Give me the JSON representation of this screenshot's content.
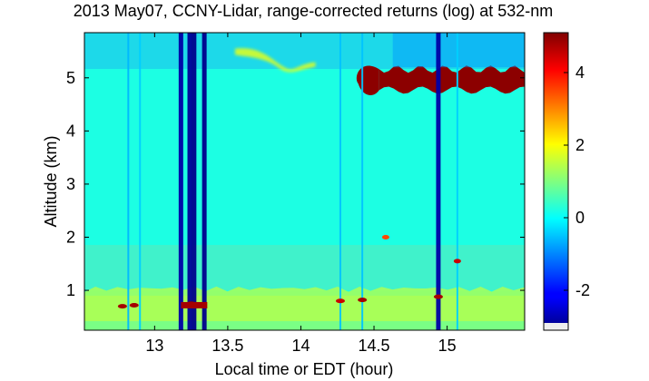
{
  "chart_data": {
    "type": "heatmap",
    "title": "2013 May07, CCNY-Lidar, range-corrected returns (log) at 532-nm",
    "xlabel": "Local time or EDT (hour)",
    "ylabel": "Altitude (km)",
    "xlim": [
      12.52,
      15.53
    ],
    "ylim": [
      0.25,
      5.85
    ],
    "xticks": [
      13,
      13.5,
      14,
      14.5,
      15
    ],
    "xtick_labels": [
      "13",
      "13.5",
      "14",
      "14.5",
      "15"
    ],
    "yticks": [
      1,
      2,
      3,
      4,
      5
    ],
    "ytick_labels": [
      "1",
      "2",
      "3",
      "4",
      "5"
    ],
    "colorbar": {
      "colormap": "jet",
      "clim": [
        -3.1,
        5.1
      ],
      "ticks": [
        -2,
        0,
        2,
        4
      ],
      "tick_labels": [
        "-2",
        "0",
        "2",
        "4"
      ]
    },
    "background": {
      "free_troposphere_value": 0.2,
      "boundary_layer_value": 1.0,
      "boundary_layer_top_km": 0.9
    },
    "cloud_layer": {
      "x_start": 14.38,
      "x_end": 15.53,
      "altitude_bottom_km": 4.7,
      "altitude_top_km": 5.3,
      "value": 5.0
    },
    "aerosol_layer": {
      "x_start": 13.55,
      "x_end": 14.1,
      "altitude_km": 5.5,
      "value": 1.8
    },
    "signal_dropouts": [
      {
        "x": 12.82,
        "value": -0.6
      },
      {
        "x": 12.9,
        "value": -0.4
      },
      {
        "x": 13.18,
        "value": -2.8
      },
      {
        "x": 13.24,
        "value": -2.9
      },
      {
        "x": 13.27,
        "value": -3.0
      },
      {
        "x": 13.34,
        "value": -3.0
      },
      {
        "x": 14.27,
        "value": -0.5
      },
      {
        "x": 14.42,
        "value": -0.5
      },
      {
        "x": 14.94,
        "value": -2.8
      },
      {
        "x": 15.07,
        "value": -0.4
      }
    ],
    "low_cloud_spots": [
      {
        "x": 12.78,
        "altitude_km": 0.7,
        "value": 4.8
      },
      {
        "x": 12.86,
        "altitude_km": 0.72,
        "value": 4.8
      },
      {
        "x": 13.25,
        "altitude_km": 0.75,
        "value": 5.0
      },
      {
        "x": 14.27,
        "altitude_km": 0.8,
        "value": 4.5
      },
      {
        "x": 14.42,
        "altitude_km": 0.82,
        "value": 4.8
      },
      {
        "x": 14.94,
        "altitude_km": 0.88,
        "value": 4.8
      },
      {
        "x": 15.07,
        "altitude_km": 1.55,
        "value": 4.5
      },
      {
        "x": 14.58,
        "altitude_km": 2.0,
        "value": 3.5
      }
    ]
  }
}
